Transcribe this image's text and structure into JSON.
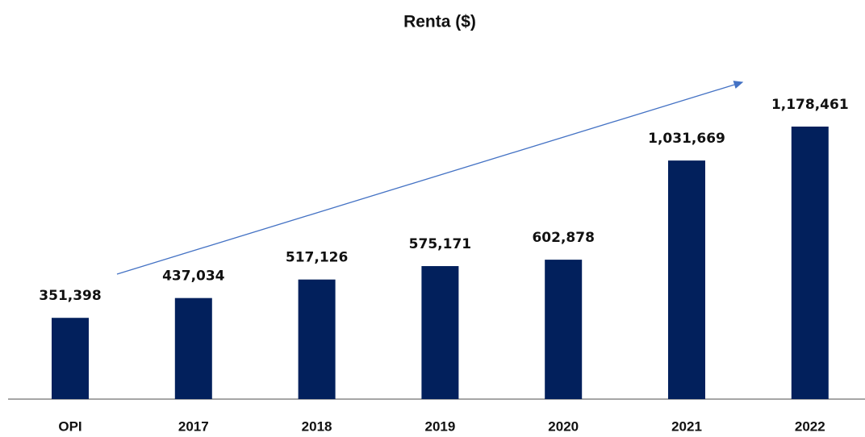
{
  "chart_data": {
    "type": "bar",
    "title": "Renta ($)",
    "categories": [
      "OPI",
      "2017",
      "2018",
      "2019",
      "2020",
      "2021",
      "2022"
    ],
    "values": [
      351398,
      437034,
      517126,
      575171,
      602878,
      1031669,
      1178461
    ],
    "value_labels": [
      "351,398",
      "437,034",
      "517,126",
      "575,171",
      "602,878",
      "1,031,669",
      "1,178,461"
    ],
    "color": "#02205c"
  }
}
